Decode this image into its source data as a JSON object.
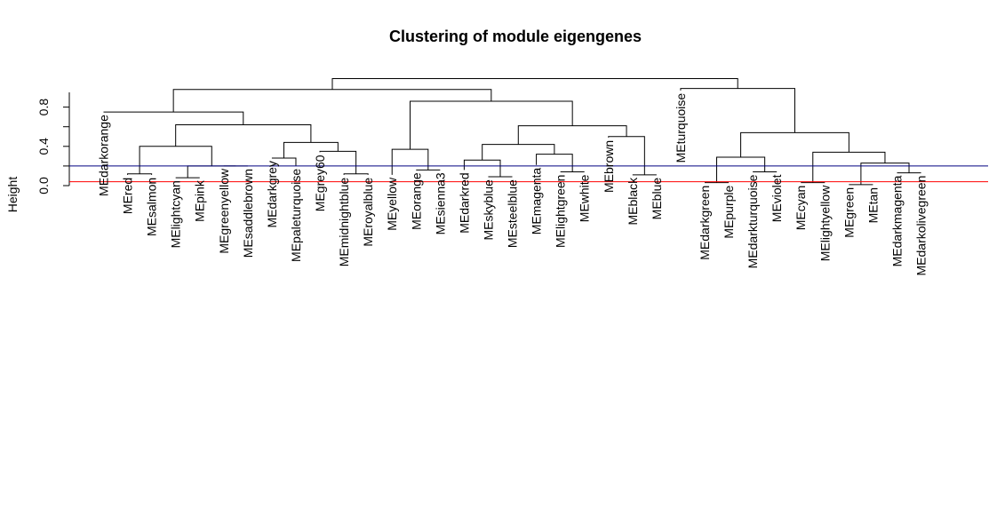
{
  "chart_data": {
    "type": "dendrogram",
    "title": "Clustering of module eigengenes",
    "ylabel": "Height",
    "xlabel": "",
    "ylim": [
      0,
      1.0
    ],
    "yticks": [
      "0.0",
      "0.4",
      "0.8"
    ],
    "ytick_values": [
      0.0,
      0.4,
      0.8
    ],
    "cut_lines": [
      {
        "height": 0.2,
        "color": "#000080"
      },
      {
        "height": 0.04,
        "color": "#ff0000"
      }
    ],
    "leaves": [
      "MEdarkorange",
      "MEred",
      "MEsalmon",
      "MElightcyan",
      "MEpink",
      "MEgreenyellow",
      "MEsaddlebrown",
      "MEdarkgrey",
      "MEpaleturquoise",
      "MEgrey60",
      "MEmidnightblue",
      "MEroyalblue",
      "MEyellow",
      "MEorange",
      "MEsienna3",
      "MEdarkred",
      "MEskyblue",
      "MEsteelblue",
      "MEmagenta",
      "MElightgreen",
      "MEwhite",
      "MEbrown",
      "MEblack",
      "MEblue",
      "MEturquoise",
      "MEdarkgreen",
      "MEpurple",
      "MEdarkturquoise",
      "MEviolet",
      "MEcyan",
      "MElightyellow",
      "MEgreen",
      "MEtan",
      "MEdarkmagenta",
      "MEdarkolivegreen"
    ],
    "leaf_heights": [
      0.75,
      0.11,
      0.11,
      0.08,
      0.08,
      0.2,
      0.2,
      0.28,
      0.2,
      0.34,
      0.11,
      0.11,
      0.11,
      0.16,
      0.16,
      0.16,
      0.09,
      0.09,
      0.21,
      0.14,
      0.14,
      0.49,
      0.11,
      0.11,
      0.97,
      0.03,
      0.03,
      0.14,
      0.14,
      0.03,
      0.03,
      0.01,
      0.01,
      0.13,
      0.13
    ],
    "merges": [
      {
        "a": "L1",
        "b": "L2",
        "height": 0.12
      },
      {
        "a": "L3",
        "b": "L4",
        "height": 0.08
      },
      {
        "a": "L5",
        "b": "L6",
        "height": 0.2
      },
      {
        "a": "M2",
        "b": "M3",
        "height": 0.2
      },
      {
        "a": "M1",
        "b": "M4",
        "height": 0.4
      },
      {
        "a": "L7",
        "b": "L8",
        "height": 0.28
      },
      {
        "a": "L10",
        "b": "L11",
        "height": 0.12
      },
      {
        "a": "L9",
        "b": "M7",
        "height": 0.35
      },
      {
        "a": "M6",
        "b": "M8",
        "height": 0.44
      },
      {
        "a": "M5",
        "b": "M9",
        "height": 0.62
      },
      {
        "a": "L0",
        "b": "M10",
        "height": 0.75
      },
      {
        "a": "L13",
        "b": "L14",
        "height": 0.16
      },
      {
        "a": "L12",
        "b": "M12",
        "height": 0.37
      },
      {
        "a": "L16",
        "b": "L17",
        "height": 0.09
      },
      {
        "a": "L15",
        "b": "M14",
        "height": 0.26
      },
      {
        "a": "L19",
        "b": "L20",
        "height": 0.14
      },
      {
        "a": "L18",
        "b": "M16",
        "height": 0.32
      },
      {
        "a": "M15",
        "b": "M17",
        "height": 0.42
      },
      {
        "a": "L22",
        "b": "L23",
        "height": 0.11
      },
      {
        "a": "L21",
        "b": "M19",
        "height": 0.5
      },
      {
        "a": "M18",
        "b": "M20",
        "height": 0.61
      },
      {
        "a": "M13",
        "b": "M21",
        "height": 0.86
      },
      {
        "a": "M11",
        "b": "M22",
        "height": 0.98
      },
      {
        "a": "L25",
        "b": "L26",
        "height": 0.03
      },
      {
        "a": "L27",
        "b": "L28",
        "height": 0.14
      },
      {
        "a": "M24",
        "b": "M25",
        "height": 0.29
      },
      {
        "a": "L29",
        "b": "L30",
        "height": 0.03
      },
      {
        "a": "L31",
        "b": "L32",
        "height": 0.01
      },
      {
        "a": "L33",
        "b": "L34",
        "height": 0.13
      },
      {
        "a": "M28",
        "b": "M29",
        "height": 0.23
      },
      {
        "a": "M27",
        "b": "M30",
        "height": 0.34
      },
      {
        "a": "M26",
        "b": "M31",
        "height": 0.54
      },
      {
        "a": "L24",
        "b": "M32",
        "height": 0.99
      },
      {
        "a": "M23",
        "b": "M33",
        "height": 1.09
      }
    ]
  }
}
